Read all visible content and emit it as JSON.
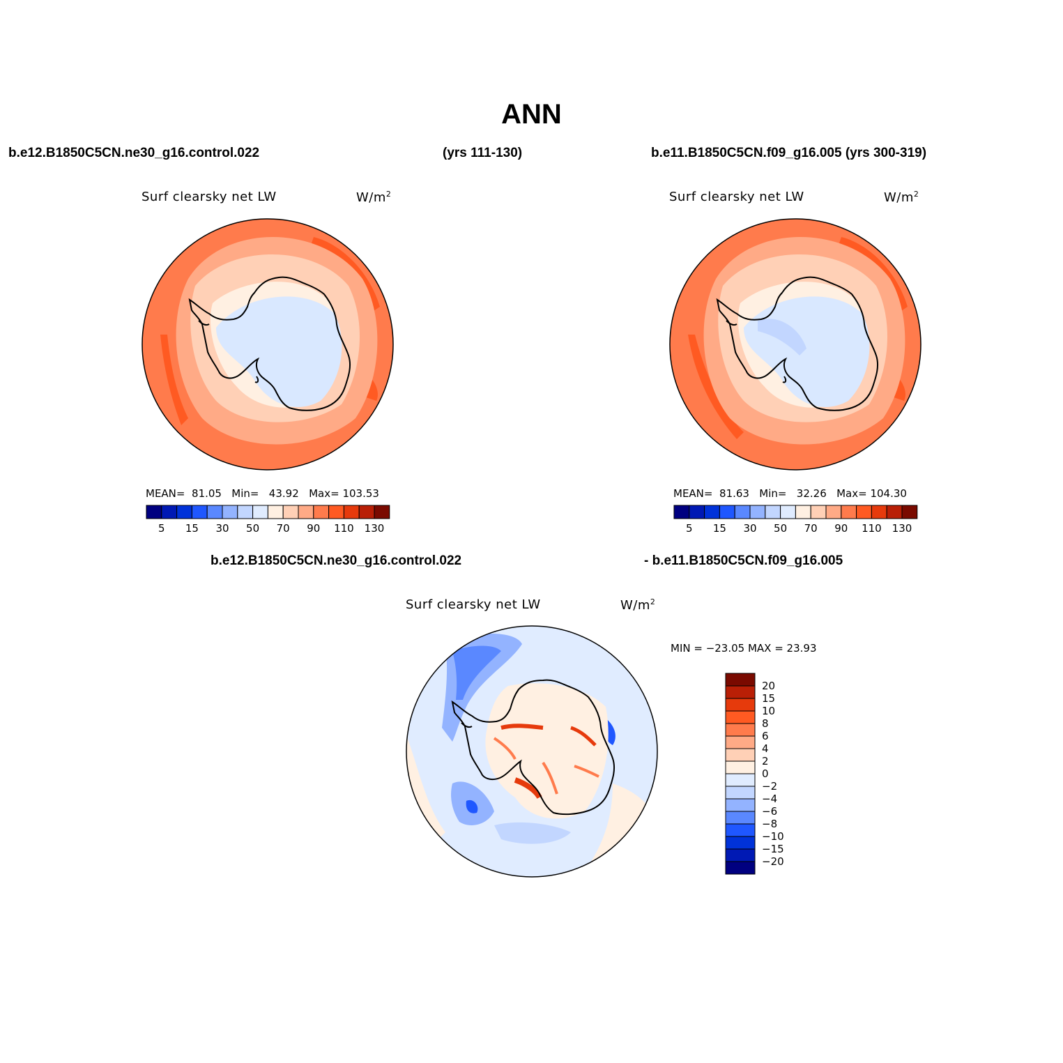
{
  "title": "ANN",
  "top_row": {
    "left_case": "b.e12.B1850C5CN.ne30_g16.control.022",
    "left_years": "(yrs 111-130)",
    "right_case": "b.e11.B1850C5CN.f09_g16.005 (yrs 300-319)"
  },
  "diff_row": {
    "case_a": "b.e12.B1850C5CN.ne30_g16.control.022",
    "case_b": "- b.e11.B1850C5CN.f09_g16.005"
  },
  "panels": [
    {
      "variable": "Surf clearsky net LW",
      "units": "W/m",
      "units_exp": "2",
      "stats": {
        "mean_label": "MEAN=",
        "mean": "81.05",
        "min_label": "Min=",
        "min": "43.92",
        "max_label": "Max=",
        "max": "103.53"
      }
    },
    {
      "variable": "Surf clearsky net LW",
      "units": "W/m",
      "units_exp": "2",
      "stats": {
        "mean_label": "MEAN=",
        "mean": "81.63",
        "min_label": "Min=",
        "min": "32.26",
        "max_label": "Max=",
        "max": "104.30"
      }
    },
    {
      "variable": "Surf clearsky net LW",
      "units": "W/m",
      "units_exp": "2",
      "stats_text": "MIN = −23.05 MAX =  23.93"
    }
  ],
  "colorbar_abs": {
    "colors": [
      "#000080",
      "#0019b4",
      "#0032d9",
      "#1f57ff",
      "#5a88ff",
      "#93b3ff",
      "#c2d6ff",
      "#e0ecff",
      "#fff0e2",
      "#ffd0b6",
      "#ffaa86",
      "#ff7b4c",
      "#ff5a22",
      "#e63a0c",
      "#b91f06",
      "#7a0a00"
    ],
    "labels": [
      "5",
      "15",
      "30",
      "50",
      "70",
      "90",
      "110",
      "130"
    ]
  },
  "colorbar_diff": {
    "colors": [
      "#7a0a00",
      "#b91f06",
      "#e63a0c",
      "#ff5a22",
      "#ff7b4c",
      "#ffaa86",
      "#ffd0b6",
      "#fff0e2",
      "#e0ecff",
      "#c2d6ff",
      "#93b3ff",
      "#5a88ff",
      "#1f57ff",
      "#0032d9",
      "#0019b4",
      "#000080"
    ],
    "labels": [
      "20",
      "15",
      "10",
      "8",
      "6",
      "4",
      "2",
      "0",
      "−2",
      "−4",
      "−6",
      "−8",
      "−10",
      "−15",
      "−20"
    ]
  }
}
